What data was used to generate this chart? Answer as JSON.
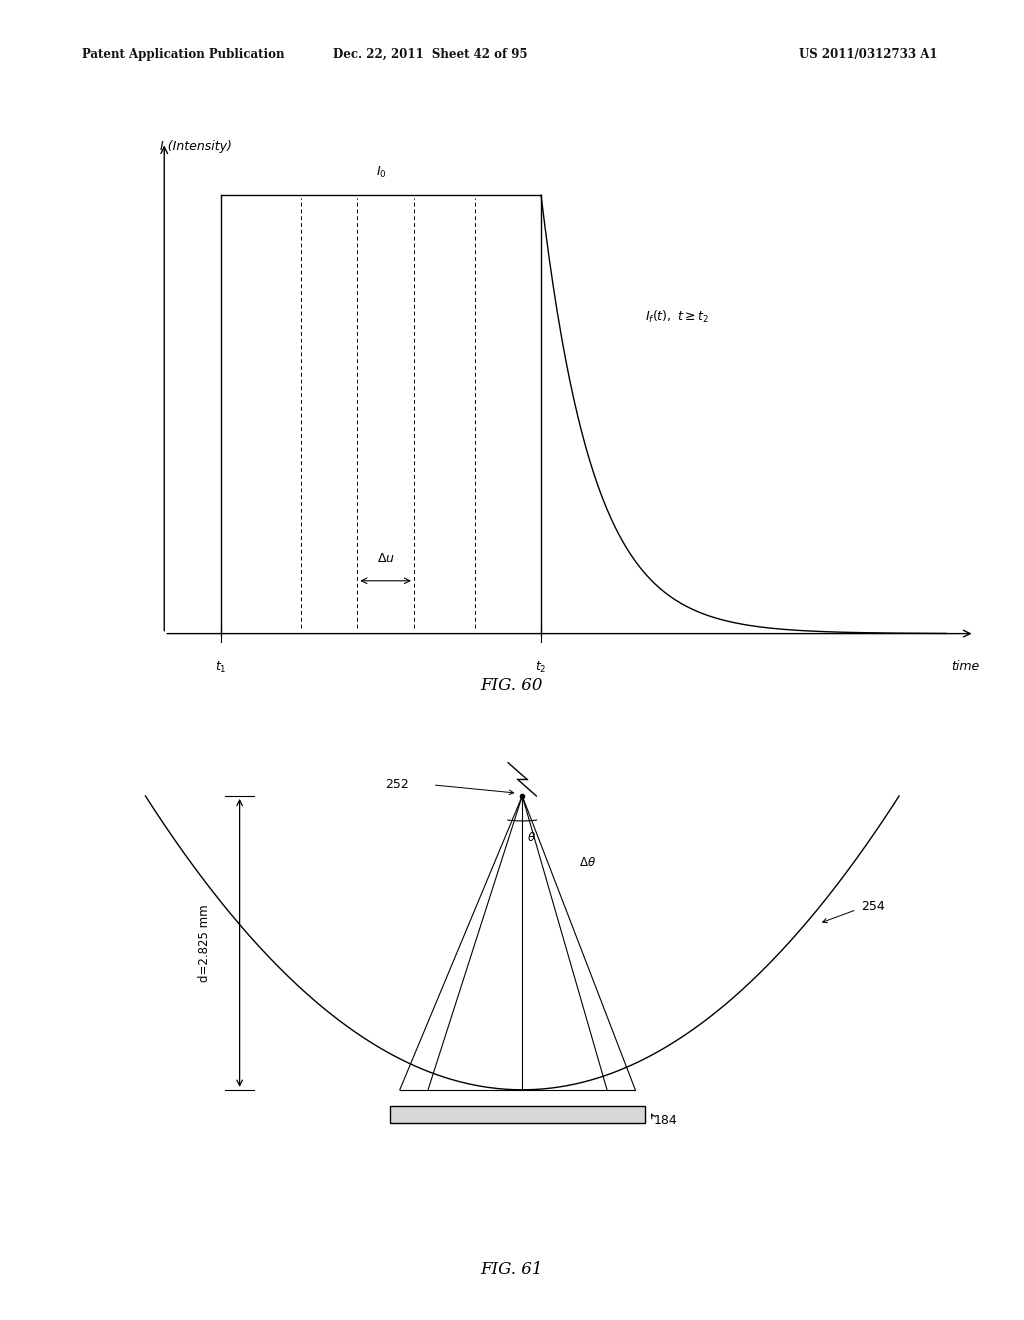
{
  "bg_color": "#ffffff",
  "header_left": "Patent Application Publication",
  "header_mid": "Dec. 22, 2011  Sheet 42 of 95",
  "header_right": "US 2011/0312733 A1",
  "fig60_label": "FIG. 60",
  "fig61_label": "FIG. 61"
}
